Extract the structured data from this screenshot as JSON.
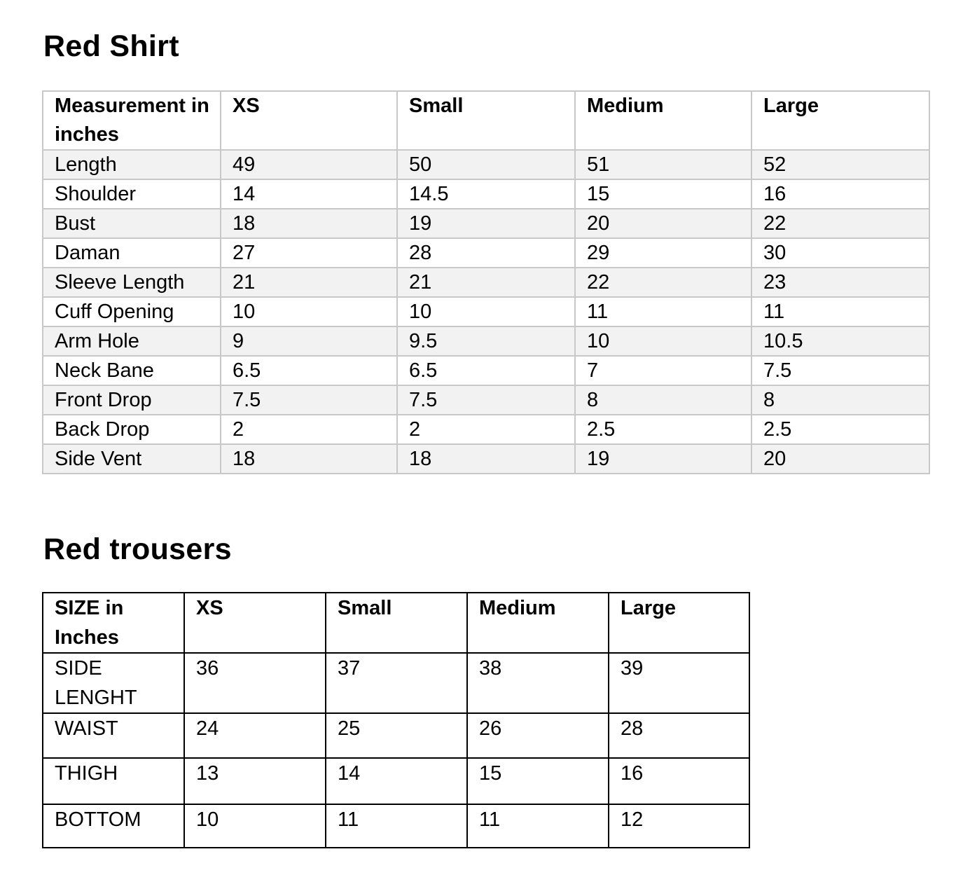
{
  "shirt": {
    "title": "Red Shirt",
    "headers": [
      "Measurement in inches",
      "XS",
      "Small",
      "Medium",
      "Large"
    ],
    "rows": [
      [
        "Length",
        "49",
        "50",
        "51",
        "52"
      ],
      [
        "Shoulder",
        "14",
        "14.5",
        "15",
        "16"
      ],
      [
        "Bust",
        "18",
        "19",
        "20",
        "22"
      ],
      [
        "Daman",
        "27",
        "28",
        "29",
        "30"
      ],
      [
        "Sleeve Length",
        "21",
        "21",
        "22",
        "23"
      ],
      [
        "Cuff Opening",
        "10",
        "10",
        "11",
        "11"
      ],
      [
        "Arm Hole",
        "9",
        "9.5",
        "10",
        "10.5"
      ],
      [
        "Neck Bane",
        "6.5",
        "6.5",
        "7",
        "7.5"
      ],
      [
        "Front Drop",
        "7.5",
        "7.5",
        "8",
        "8"
      ],
      [
        "Back Drop",
        "2",
        "2",
        "2.5",
        "2.5"
      ],
      [
        "Side Vent",
        "18",
        "18",
        "19",
        "20"
      ]
    ]
  },
  "trousers": {
    "title": "Red trousers",
    "headers": [
      "SIZE in Inches",
      "XS",
      "Small",
      "Medium",
      "Large"
    ],
    "rows": [
      [
        "SIDE LENGHT",
        "36",
        "37",
        "38",
        "39"
      ],
      [
        "WAIST",
        "24",
        "25",
        "26",
        "28"
      ],
      [
        "THIGH",
        "13",
        "14",
        "15",
        "16"
      ],
      [
        "BOTTOM",
        "10",
        "11",
        "11",
        "12"
      ]
    ]
  }
}
